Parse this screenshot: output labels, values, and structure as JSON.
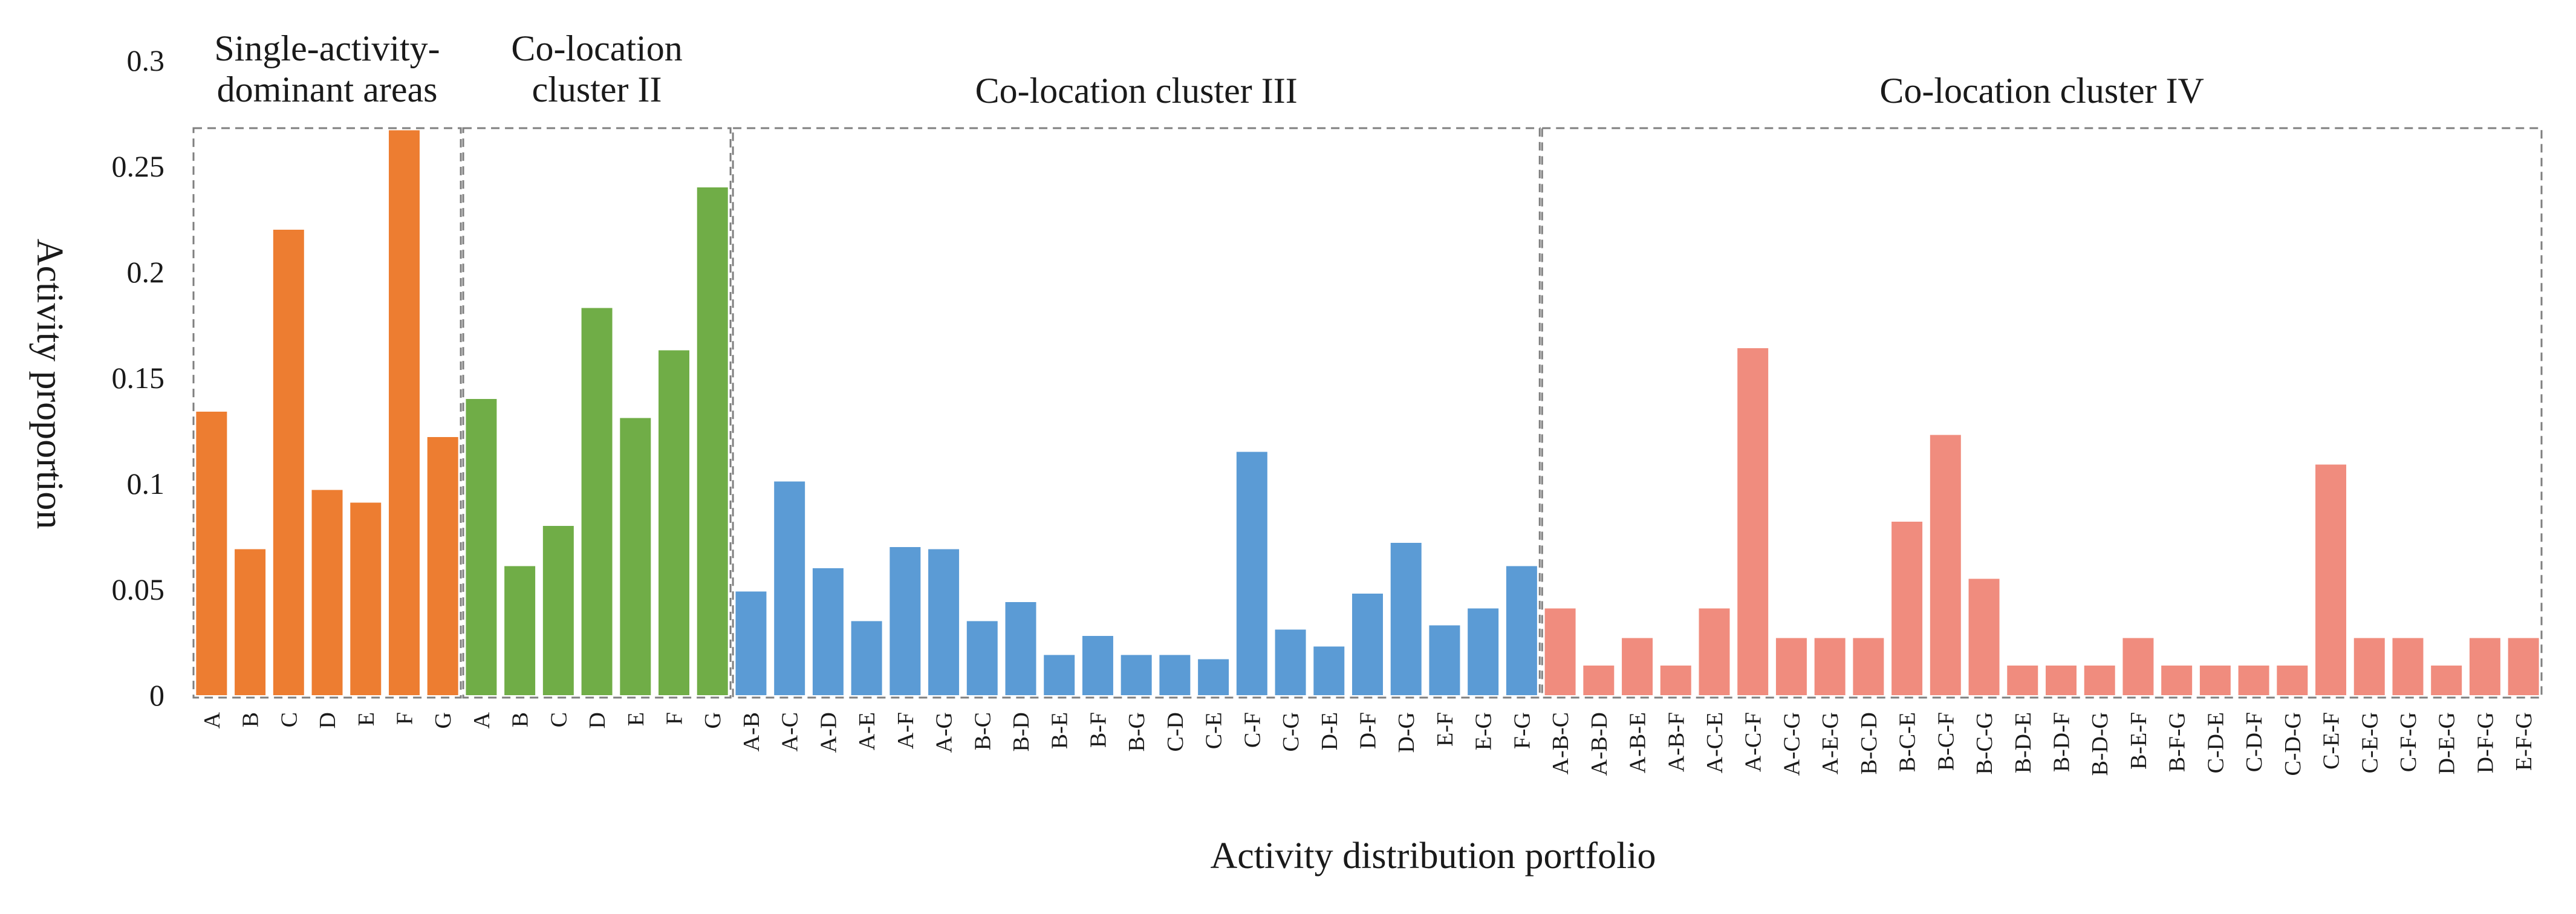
{
  "chart_data": {
    "type": "bar",
    "xlabel": "Activity distribution portfolio",
    "ylabel": "Activity proportion",
    "ylim": [
      0,
      0.3
    ],
    "yticks": [
      {
        "value": 0,
        "label": "0"
      },
      {
        "value": 0.05,
        "label": "0.05"
      },
      {
        "value": 0.1,
        "label": "0.1"
      },
      {
        "value": 0.15,
        "label": "0.15"
      },
      {
        "value": 0.2,
        "label": "0.2"
      },
      {
        "value": 0.25,
        "label": "0.25"
      },
      {
        "value": 0.3,
        "label": "0.3"
      }
    ],
    "groups": [
      {
        "label_lines": [
          "Single-activity-",
          "dominant areas"
        ],
        "color": "#ED7D31",
        "categories": [
          "A",
          "B",
          "C",
          "D",
          "E",
          "F",
          "G"
        ],
        "values": [
          0.134,
          0.069,
          0.22,
          0.097,
          0.091,
          0.267,
          0.122
        ]
      },
      {
        "label_lines": [
          "Co-location",
          "cluster II"
        ],
        "color": "#70AD47",
        "categories": [
          "A",
          "B",
          "C",
          "D",
          "E",
          "F",
          "G"
        ],
        "values": [
          0.14,
          0.061,
          0.08,
          0.183,
          0.131,
          0.163,
          0.24
        ]
      },
      {
        "label_lines": [
          "Co-location cluster III"
        ],
        "color": "#5B9BD5",
        "categories": [
          "A-B",
          "A-C",
          "A-D",
          "A-E",
          "A-F",
          "A-G",
          "B-C",
          "B-D",
          "B-E",
          "B-F",
          "B-G",
          "C-D",
          "C-E",
          "C-F",
          "C-G",
          "D-E",
          "D-F",
          "D-G",
          "E-F",
          "E-G",
          "F-G"
        ],
        "values": [
          0.049,
          0.101,
          0.06,
          0.035,
          0.07,
          0.069,
          0.035,
          0.044,
          0.019,
          0.028,
          0.019,
          0.019,
          0.017,
          0.115,
          0.031,
          0.023,
          0.048,
          0.072,
          0.033,
          0.041,
          0.061
        ]
      },
      {
        "label_lines": [
          "Co-location cluster IV"
        ],
        "color": "#F08C7E",
        "categories": [
          "A-B-C",
          "A-B-D",
          "A-B-E",
          "A-B-F",
          "A-C-E",
          "A-C-F",
          "A-C-G",
          "A-E-G",
          "B-C-D",
          "B-C-E",
          "B-C-F",
          "B-C-G",
          "B-D-E",
          "B-D-F",
          "B-D-G",
          "B-E-F",
          "B-F-G",
          "C-D-E",
          "C-D-F",
          "C-D-G",
          "C-E-F",
          "C-E-G",
          "C-F-G",
          "D-E-G",
          "D-F-G",
          "E-F-G"
        ],
        "values": [
          0.041,
          0.014,
          0.027,
          0.014,
          0.041,
          0.164,
          0.027,
          0.027,
          0.027,
          0.082,
          0.123,
          0.055,
          0.014,
          0.014,
          0.014,
          0.027,
          0.014,
          0.014,
          0.014,
          0.014,
          0.109,
          0.027,
          0.027,
          0.014,
          0.027,
          0.027
        ]
      }
    ]
  }
}
